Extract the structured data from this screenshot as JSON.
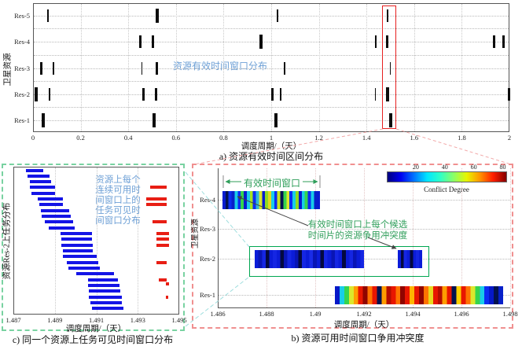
{
  "chart_data": [
    {
      "id": "a",
      "type": "scatter",
      "caption": "a) 资源有效时间区间分布",
      "xlabel": "调度周期/（天）",
      "ylabel": "卫星资源",
      "xlim": [
        0,
        2
      ],
      "xticks": {
        "values": [
          0,
          0.2,
          0.4,
          0.6,
          0.8,
          1,
          1.2,
          1.4,
          1.6,
          1.8,
          2
        ],
        "labels": [
          "0",
          "0.2",
          "0.4",
          "0.6",
          "0.8",
          "1",
          "1.2",
          "1.4",
          "1.6",
          "1.8",
          "2"
        ]
      },
      "yticks": [
        "Res-1",
        "Res-2",
        "Res-3",
        "Res-4",
        "Res-5"
      ],
      "annotation": {
        "text": "资源有效时间窗口分布",
        "color": "#6ea0d6"
      },
      "highlight_box": {
        "x0": 1.465,
        "x1": 1.522,
        "color": "#e62020"
      },
      "rows": [
        {
          "name": "Res-5",
          "windows": [
            {
              "x": 0.063,
              "w": 2
            },
            {
              "x": 0.52,
              "w": 4
            },
            {
              "x": 1.027,
              "w": 2
            },
            {
              "x": 1.487,
              "w": 2
            }
          ]
        },
        {
          "name": "Res-4",
          "windows": [
            {
              "x": 0.452,
              "w": 3
            },
            {
              "x": 0.502,
              "w": 3
            },
            {
              "x": 0.956,
              "w": 4
            },
            {
              "x": 1.44,
              "w": 2
            },
            {
              "x": 1.487,
              "w": 3
            },
            {
              "x": 1.934,
              "w": 3
            },
            {
              "x": 1.974,
              "w": 3
            }
          ]
        },
        {
          "name": "Res-3",
          "windows": [
            {
              "x": 0.036,
              "w": 3
            },
            {
              "x": 0.085,
              "w": 2
            },
            {
              "x": 0.458,
              "w": 1
            },
            {
              "x": 0.52,
              "w": 3
            },
            {
              "x": 1.056,
              "w": 2
            },
            {
              "x": 1.5,
              "w": 1
            }
          ]
        },
        {
          "name": "Res-2",
          "windows": [
            {
              "x": 0.012,
              "w": 4
            },
            {
              "x": 0.07,
              "w": 2
            },
            {
              "x": 0.465,
              "w": 3
            },
            {
              "x": 0.516,
              "w": 3
            },
            {
              "x": 1.004,
              "w": 3
            },
            {
              "x": 1.04,
              "w": 2
            },
            {
              "x": 1.437,
              "w": 1
            },
            {
              "x": 1.49,
              "w": 4
            },
            {
              "x": 1.997,
              "w": 3
            }
          ]
        },
        {
          "name": "Res-1",
          "windows": [
            {
              "x": 0.043,
              "w": 4
            },
            {
              "x": 0.509,
              "w": 4
            },
            {
              "x": 1.021,
              "w": 4
            },
            {
              "x": 1.5,
              "w": 4
            }
          ]
        }
      ]
    },
    {
      "id": "c",
      "type": "bar",
      "caption": "c) 同一个资源上任务可见时间窗口分布",
      "xlabel": "调度周期/（天）",
      "ylabel": "资源Res-2上任务分布",
      "xlim": [
        1.487,
        1.495
      ],
      "xticks": {
        "values": [
          1.487,
          1.489,
          1.491,
          1.493,
          1.495
        ],
        "labels": [
          "1.487",
          "1.489",
          "1.491",
          "1.493",
          "1.495"
        ]
      },
      "annotation": {
        "lines": [
          "资源上每个",
          "连续可用时",
          "间窗口上的",
          "任务可见时",
          "间窗口分布"
        ],
        "color": "#6ea0d6"
      },
      "bar_colors": {
        "visible_window": "#1414e6",
        "conflict_window": "#e81e14"
      },
      "blue_bars": [
        [
          1.48761,
          1.48844
        ],
        [
          1.48768,
          1.48874
        ],
        [
          1.4878,
          1.48882
        ],
        [
          1.4878,
          1.48901
        ],
        [
          1.48787,
          1.48901
        ],
        [
          1.48817,
          1.48939
        ],
        [
          1.48825,
          1.48939
        ],
        [
          1.48833,
          1.48969
        ],
        [
          1.48836,
          1.48977
        ],
        [
          1.48852,
          1.48988
        ],
        [
          1.48871,
          1.48996
        ],
        [
          1.48927,
          1.49079
        ],
        [
          1.48931,
          1.49079
        ],
        [
          1.48931,
          1.49083
        ],
        [
          1.48939,
          1.49083
        ],
        [
          1.48939,
          1.49102
        ],
        [
          1.48958,
          1.49109
        ],
        [
          1.48965,
          1.49117
        ],
        [
          1.49003,
          1.49185
        ],
        [
          1.4906,
          1.49204
        ],
        [
          1.4906,
          1.49212
        ],
        [
          1.49064,
          1.49215
        ],
        [
          1.49064,
          1.49223
        ],
        [
          1.49071,
          1.49223
        ],
        [
          1.49079,
          1.49231
        ]
      ],
      "red_bars": [
        {
          "row": 3,
          "s": 1.4936,
          "e": 1.4944
        },
        {
          "row": 5,
          "s": 1.4934,
          "e": 1.4944
        },
        {
          "row": 6,
          "s": 1.4934,
          "e": 1.4944
        },
        {
          "row": 9,
          "s": 1.4937,
          "e": 1.4944
        },
        {
          "row": 11,
          "s": 1.4939,
          "e": 1.4945
        },
        {
          "row": 12,
          "s": 1.4939,
          "e": 1.4945
        },
        {
          "row": 13,
          "s": 1.4939,
          "e": 1.4945
        },
        {
          "row": 16,
          "s": 1.4939,
          "e": 1.4944
        },
        {
          "row": 19,
          "s": 1.494,
          "e": 1.4944
        },
        {
          "row": 19.7,
          "s": 1.49435,
          "e": 1.4945
        },
        {
          "row": 22,
          "s": 1.49435,
          "e": 1.49446
        }
      ]
    },
    {
      "id": "b",
      "type": "heatmap",
      "caption": "b) 资源可用时间窗口争用冲突度",
      "xlabel": "调度周期/（天）",
      "ylabel": "卫星资源",
      "xlim": [
        1.486,
        1.498
      ],
      "xticks": {
        "values": [
          1.486,
          1.488,
          1.49,
          1.492,
          1.494,
          1.496,
          1.498
        ],
        "labels": [
          "1.486",
          "1.488",
          "1.49",
          "1.492",
          "1.494",
          "1.496",
          "1.498"
        ]
      },
      "yticks": [
        "Res-1",
        "Res-2",
        "Res-3",
        "Res-4"
      ],
      "colorbar": {
        "label": "Conflict Degree",
        "ticks": [
          20,
          40,
          60,
          80
        ],
        "range": [
          0,
          83
        ],
        "stops": [
          "#00007f",
          "#0000f0",
          "#0073ff",
          "#00e5ff",
          "#2effc8",
          "#8aff67",
          "#e8f500",
          "#ff9400",
          "#ff1e00",
          "#840000"
        ]
      },
      "annotations": {
        "span_text": "有效时间窗口",
        "pointer_lines": [
          "有效时间窗口上每个候选",
          "时间片的资源争用冲突度"
        ],
        "color": "#2f9e5a"
      },
      "highlight_box": {
        "x0": 1.4873,
        "x1": 1.4947,
        "color": "#00a651"
      },
      "bars": [
        {
          "res": "Res-4",
          "segments": [
            {
              "s": 1.4862,
              "e": 1.4902,
              "stripes": [
                "#071bd0",
                "#03124f",
                "#0b2df2",
                "#0720c9",
                "#18cde8",
                "#0b2df2",
                "#35d44e",
                "#071bd0",
                "#18cde8",
                "#a5e31f",
                "#0b2df2",
                "#31b8d9",
                "#dce72c",
                "#071bd0",
                "#8fd921",
                "#e3da1f",
                "#18cde8",
                "#0b2df2",
                "#c8e31f",
                "#03124f",
                "#35d44e",
                "#dce72c",
                "#0b2df2",
                "#18cde8",
                "#8fd921",
                "#071bd0",
                "#18cde8",
                "#35d44e",
                "#0b2df2",
                "#18cde8",
                "#0720c9",
                "#071bd0"
              ]
            }
          ]
        },
        {
          "res": "Res-2",
          "segments": [
            {
              "s": 1.4875,
              "e": 1.492,
              "stripes": [
                "#0b1cd8",
                "#0915b5",
                "#1526e3",
                "#03093f",
                "#0b1cd8",
                "#1526e3",
                "#0b1cd8",
                "#03093f",
                "#0915b5",
                "#1526e3",
                "#0b1cd8",
                "#0915b5",
                "#03093f",
                "#1526e3",
                "#0b1cd8",
                "#1a2ce8",
                "#0915b5",
                "#0b1cd8",
                "#03093f",
                "#1526e3",
                "#0b1cd8",
                "#0915b5",
                "#1526e3",
                "#0b1cd8",
                "#03093f",
                "#0b1cd8",
                "#1526e3",
                "#0915b5",
                "#0b1cd8",
                "#1526e3"
              ]
            },
            {
              "s": 1.4934,
              "e": 1.4944,
              "stripes": [
                "#0b1cd8",
                "#03093f",
                "#1526e3",
                "#0b1cd8",
                "#03093f",
                "#0b1cd8",
                "#1526e3",
                "#0b1cd8"
              ]
            }
          ]
        },
        {
          "res": "Res-1",
          "segments": [
            {
              "s": 1.4908,
              "e": 1.4977,
              "stripes": [
                "#0618c8",
                "#18cde8",
                "#35d44e",
                "#dce72c",
                "#ff9d00",
                "#e81600",
                "#8f0400",
                "#ff7300",
                "#e81600",
                "#03124f",
                "#ff9d00",
                "#b50d00",
                "#e81600",
                "#ff7300",
                "#8f0400",
                "#e81600",
                "#ffb400",
                "#e81600",
                "#8f0400",
                "#ff7300",
                "#e8d81f",
                "#e81600",
                "#b50d00",
                "#ff9d00",
                "#e81600",
                "#03124f",
                "#ffd000",
                "#e81600",
                "#ff7300",
                "#dce72c",
                "#35d44e",
                "#18cde8",
                "#0b2df2",
                "#0618c8",
                "#03124f",
                "#0720c9"
              ]
            }
          ]
        }
      ]
    }
  ]
}
